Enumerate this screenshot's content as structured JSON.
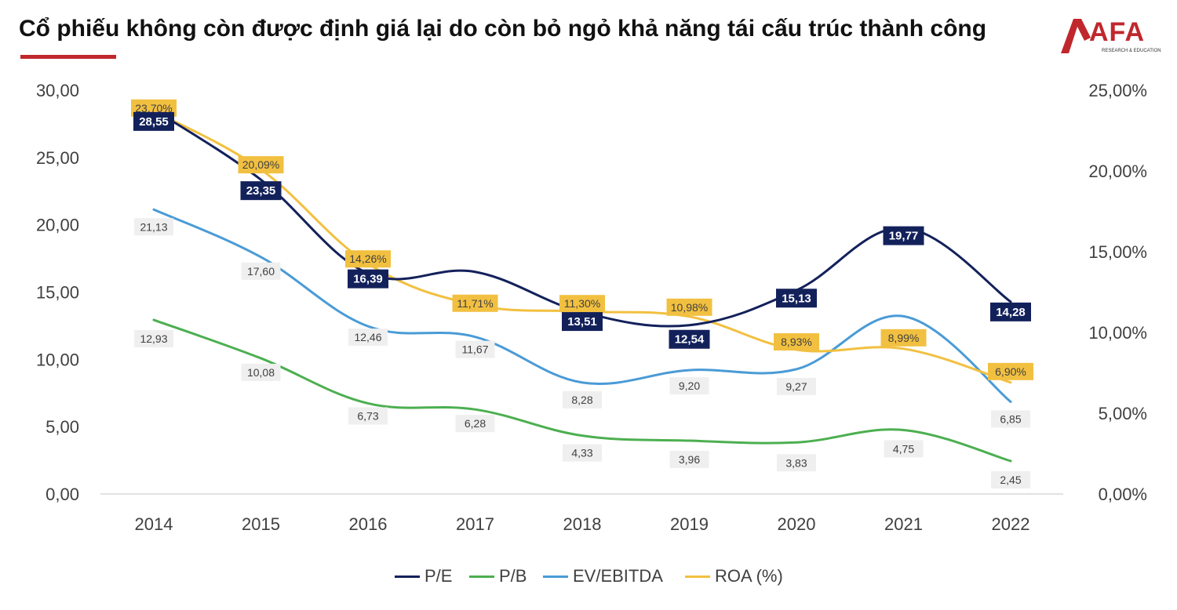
{
  "title": "Cổ phiếu không còn được định giá lại do còn bỏ ngỏ khả năng tái cấu trúc thành công",
  "logo": {
    "text": "AFA",
    "subtitle": "RESEARCH & EDUCATION"
  },
  "colors": {
    "accent": "#c0272d",
    "pe": "#13215b",
    "pb": "#4caf50",
    "evebitda": "#4a9bd6",
    "roa": "#f2c040",
    "axis_text": "#404040",
    "label_box": "#efefef"
  },
  "chart_data": {
    "type": "line",
    "categories": [
      "2014",
      "2015",
      "2016",
      "2017",
      "2018",
      "2019",
      "2020",
      "2021",
      "2022"
    ],
    "ylim": [
      0,
      30
    ],
    "y_ticks": [
      "0,00",
      "5,00",
      "10,00",
      "15,00",
      "20,00",
      "25,00",
      "30,00"
    ],
    "y2lim": [
      0,
      25
    ],
    "y2_ticks": [
      "0,00%",
      "5,00%",
      "10,00%",
      "15,00%",
      "20,00%",
      "25,00%"
    ],
    "grid": false,
    "legend_position": "bottom",
    "series": [
      {
        "name": "P/E",
        "axis": "left",
        "values": [
          28.55,
          23.35,
          16.39,
          16.5,
          13.51,
          12.54,
          15.13,
          19.77,
          14.28
        ],
        "labels": [
          "28,55",
          "23,35",
          "16,39",
          "",
          "13,51",
          "12,54",
          "15,13",
          "19,77",
          "14,28"
        ]
      },
      {
        "name": "P/B",
        "axis": "left",
        "values": [
          12.93,
          10.08,
          6.73,
          6.28,
          4.33,
          3.96,
          3.83,
          4.75,
          2.45
        ],
        "labels": [
          "12,93",
          "10,08",
          "6,73",
          "6,28",
          "4,33",
          "3,96",
          "3,83",
          "4,75",
          "2,45"
        ]
      },
      {
        "name": "EV/EBITDA",
        "axis": "left",
        "values": [
          21.13,
          17.6,
          12.46,
          11.67,
          8.28,
          9.2,
          9.27,
          13.2,
          6.85
        ],
        "labels": [
          "21,13",
          "17,60",
          "12,46",
          "11,67",
          "8,28",
          "9,20",
          "9,27",
          "",
          "6,85"
        ]
      },
      {
        "name": "ROA (%)",
        "axis": "right",
        "values": [
          23.7,
          20.09,
          14.26,
          11.71,
          11.3,
          10.98,
          8.93,
          8.99,
          6.9
        ],
        "labels": [
          "23,70%",
          "20,09%",
          "14,26%",
          "11,71%",
          "11,30%",
          "10,98%",
          "8,93%",
          "8,99%",
          "6,90%"
        ]
      }
    ]
  }
}
